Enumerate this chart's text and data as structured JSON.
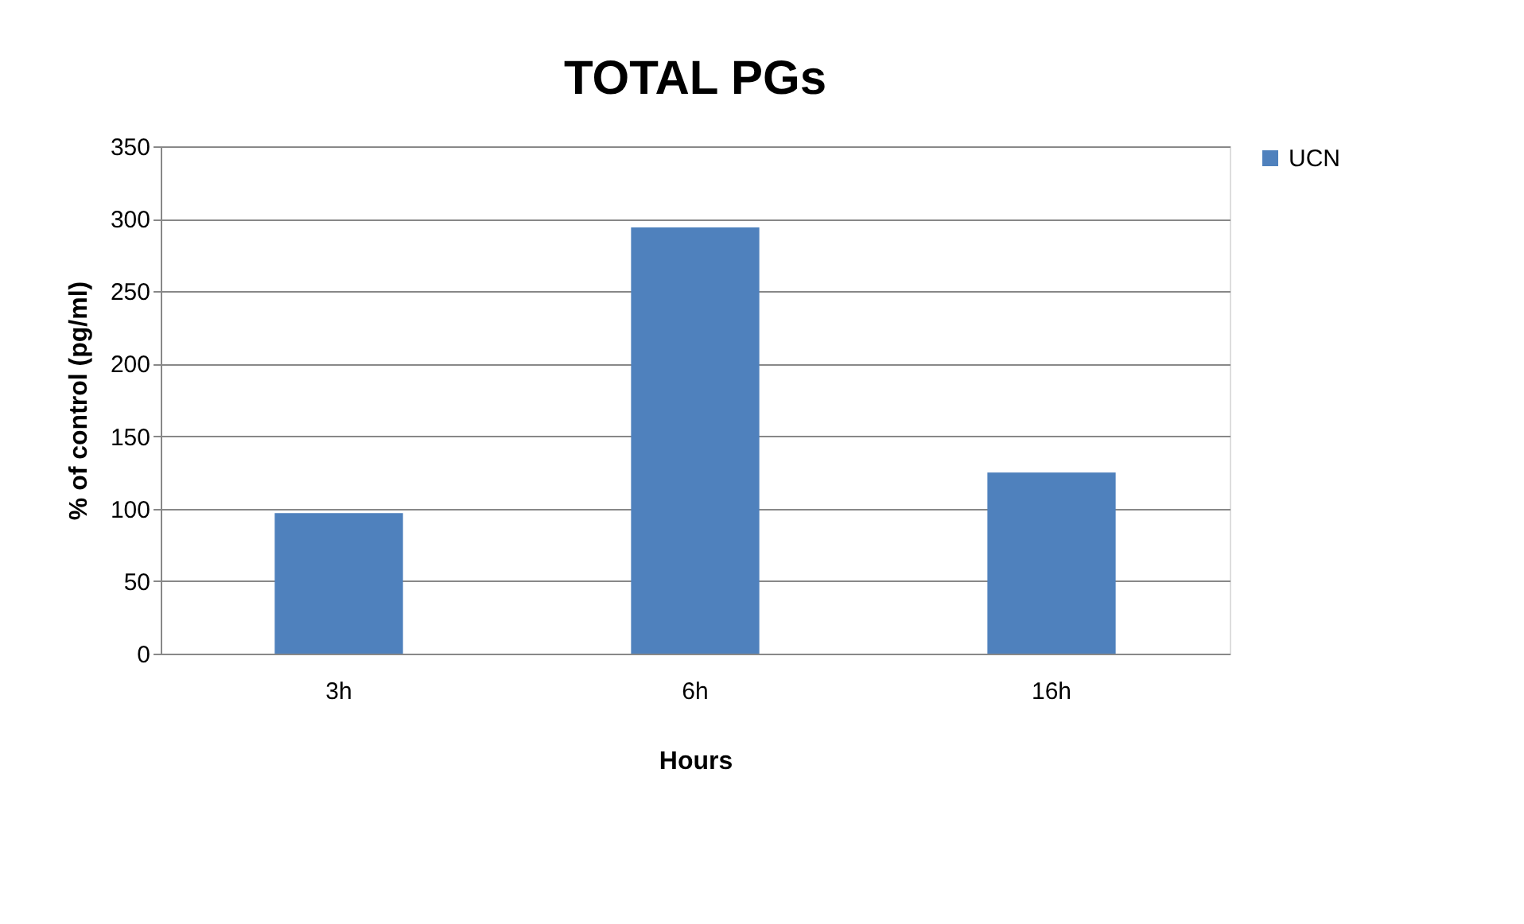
{
  "chart_data": {
    "type": "bar",
    "title": "TOTAL PGs",
    "xlabel": "Hours",
    "ylabel": "% of control (pg/ml)",
    "categories": [
      "3h",
      "6h",
      "16h"
    ],
    "series": [
      {
        "name": "UCN",
        "color": "#4f81bd",
        "values": [
          97,
          294,
          125
        ]
      }
    ],
    "ylim": [
      0,
      350
    ],
    "yticks": [
      0,
      50,
      100,
      150,
      200,
      250,
      300,
      350
    ],
    "grid": "y",
    "legend": "right"
  }
}
